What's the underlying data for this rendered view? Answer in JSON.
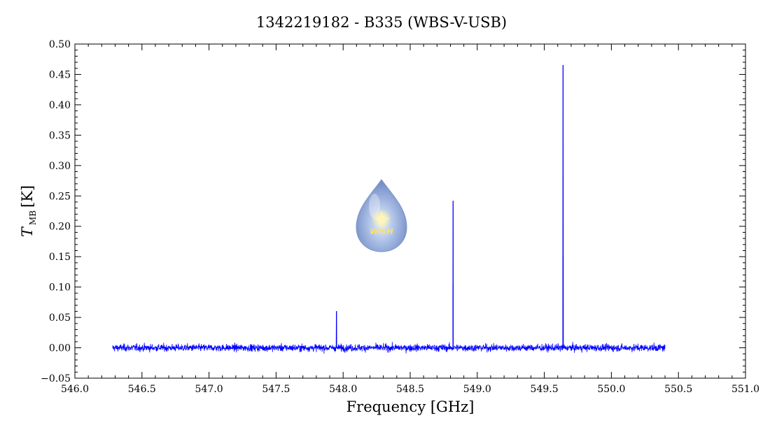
{
  "chart_data": {
    "type": "line",
    "title": "1342219182 - B335 (WBS-V-USB)",
    "xlabel": "Frequency [GHz]",
    "ylabel_main": "T",
    "ylabel_sub": "MB",
    "ylabel_unit": "[K]",
    "xlim": [
      546.0,
      551.0
    ],
    "ylim": [
      -0.05,
      0.5
    ],
    "x_ticks": [
      "546.0",
      "546.5",
      "547.0",
      "547.5",
      "548.0",
      "548.5",
      "549.0",
      "549.5",
      "550.0",
      "550.5",
      "551.0"
    ],
    "y_ticks": [
      "−0.05",
      "0.00",
      "0.05",
      "0.10",
      "0.15",
      "0.20",
      "0.25",
      "0.30",
      "0.35",
      "0.40",
      "0.45",
      "0.50"
    ],
    "grid": false,
    "legend": "none",
    "series": [
      {
        "color": "#0000ff",
        "x_range": [
          546.28,
          550.4
        ],
        "noise_sigma": 0.006,
        "features": [
          {
            "x": 547.95,
            "peak": 0.06
          },
          {
            "x": 548.82,
            "peak": 0.242
          },
          {
            "x": 548.82,
            "peak": 0.105
          },
          {
            "x": 549.64,
            "peak": 0.465
          },
          {
            "x": 549.64,
            "peak": 0.15
          }
        ]
      }
    ]
  },
  "logo": {
    "text": "WISH"
  }
}
